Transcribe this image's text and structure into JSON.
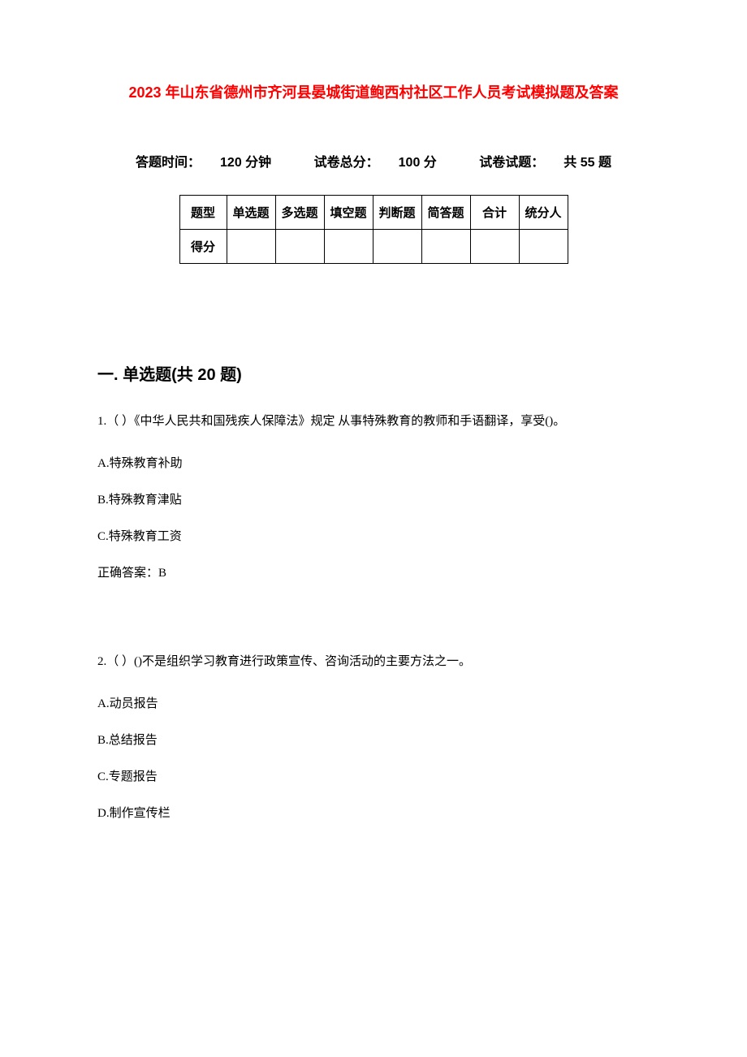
{
  "document": {
    "title": "2023 年山东省德州市齐河县晏城街道鲍西村社区工作人员考试模拟题及答案",
    "title_color": "#ff0000",
    "background_color": "#ffffff",
    "text_color": "#000000",
    "examInfo": {
      "timeLabel": "答题时间：",
      "timeValue": "120 分钟",
      "totalLabel": "试卷总分：",
      "totalValue": "100 分",
      "countLabel": "试卷试题：",
      "countValue": "共 55 题"
    },
    "scoreTable": {
      "columns": [
        "题型",
        "单选题",
        "多选题",
        "填空题",
        "判断题",
        "简答题",
        "合计",
        "统分人"
      ],
      "rowHeaders": [
        "得分"
      ],
      "border_color": "#000000",
      "cell_padding": 10
    },
    "section1": {
      "heading": "一. 单选题(共 20 题)",
      "questions": [
        {
          "number": "1.",
          "prefix": "（ ）",
          "text": "《中华人民共和国残疾人保障法》规定 从事特殊教育的教师和手语翻译，享受()。",
          "options": [
            {
              "label": "A.",
              "text": "特殊教育补助"
            },
            {
              "label": "B.",
              "text": "特殊教育津贴"
            },
            {
              "label": "C.",
              "text": "特殊教育工资"
            }
          ],
          "answerLabel": "正确答案：",
          "answerValue": "B"
        },
        {
          "number": "2.",
          "prefix": "（ ）",
          "text": "()不是组织学习教育进行政策宣传、咨询活动的主要方法之一。",
          "options": [
            {
              "label": "A.",
              "text": "动员报告"
            },
            {
              "label": "B.",
              "text": "总结报告"
            },
            {
              "label": "C.",
              "text": "专题报告"
            },
            {
              "label": "D.",
              "text": "制作宣传栏"
            }
          ]
        }
      ]
    }
  }
}
